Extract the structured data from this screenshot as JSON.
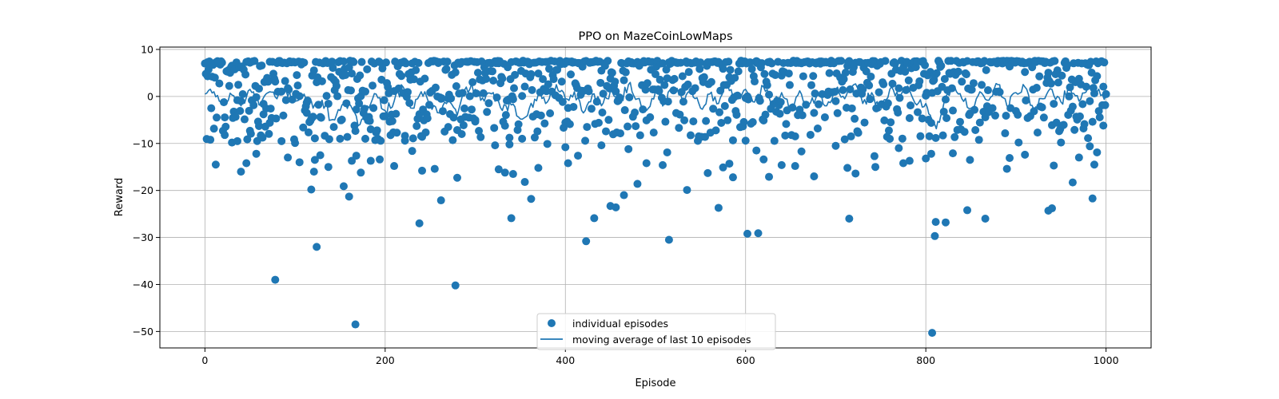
{
  "chart_data": {
    "type": "scatter",
    "title": "PPO on MazeCoinLowMaps",
    "xlabel": "Episode",
    "ylabel": "Reward",
    "xlim": [
      -50,
      1050
    ],
    "ylim": [
      -53.5,
      10.5
    ],
    "x_ticks": [
      0,
      200,
      400,
      600,
      800,
      1000
    ],
    "y_ticks": [
      -50,
      -40,
      -30,
      -20,
      -10,
      0,
      10
    ],
    "x_tick_labels": [
      "0",
      "200",
      "400",
      "600",
      "800",
      "1000"
    ],
    "y_tick_labels": [
      "−50",
      "−40",
      "−30",
      "−20",
      "−10",
      "0",
      "10"
    ],
    "grid": true,
    "legend_position": "lower center",
    "colors": {
      "series": "#1f77b4",
      "grid": "#b0b0b0"
    },
    "series": [
      {
        "name": "individual episodes",
        "kind": "scatter",
        "notes": "About 1000 points over episodes 0-999; most rewards lie between -5 and +7.5 with a dense band near +7.3; selected outliers listed.",
        "points": [
          [
            3,
            7.3
          ],
          [
            8,
            4.2
          ],
          [
            12,
            -14.5
          ],
          [
            22,
            -8.2
          ],
          [
            30,
            -9.8
          ],
          [
            36,
            -9.5
          ],
          [
            40,
            -16.0
          ],
          [
            46,
            -14.2
          ],
          [
            50,
            -7.3
          ],
          [
            57,
            -12.2
          ],
          [
            60,
            -6.3
          ],
          [
            65,
            -3.8
          ],
          [
            72,
            -5.6
          ],
          [
            78,
            -39.0
          ],
          [
            85,
            -9.5
          ],
          [
            92,
            -13.0
          ],
          [
            100,
            -9.9
          ],
          [
            105,
            -14.0
          ],
          [
            113,
            -3.5
          ],
          [
            118,
            -19.8
          ],
          [
            121,
            -16.0
          ],
          [
            122,
            -13.5
          ],
          [
            124,
            -32.0
          ],
          [
            128,
            -12.5
          ],
          [
            137,
            -15.0
          ],
          [
            143,
            -6.5
          ],
          [
            150,
            -9.0
          ],
          [
            154,
            -19.1
          ],
          [
            160,
            -21.3
          ],
          [
            163,
            -13.7
          ],
          [
            167,
            -48.5
          ],
          [
            168,
            -12.6
          ],
          [
            173,
            -16.2
          ],
          [
            178,
            -9.0
          ],
          [
            184,
            -13.7
          ],
          [
            194,
            -13.4
          ],
          [
            210,
            -14.8
          ],
          [
            222,
            -9.4
          ],
          [
            230,
            -11.6
          ],
          [
            238,
            -27.0
          ],
          [
            241,
            -15.8
          ],
          [
            255,
            -15.4
          ],
          [
            262,
            -22.1
          ],
          [
            270,
            -6.5
          ],
          [
            278,
            -40.2
          ],
          [
            280,
            -17.3
          ],
          [
            285,
            -8.0
          ],
          [
            300,
            -5.0
          ],
          [
            322,
            -10.4
          ],
          [
            326,
            -15.5
          ],
          [
            333,
            -16.2
          ],
          [
            338,
            -10.2
          ],
          [
            340,
            -25.9
          ],
          [
            342,
            -16.5
          ],
          [
            352,
            -9.0
          ],
          [
            355,
            -18.2
          ],
          [
            362,
            -21.8
          ],
          [
            370,
            -15.2
          ],
          [
            380,
            -10.1
          ],
          [
            400,
            -10.8
          ],
          [
            403,
            -14.2
          ],
          [
            414,
            -12.6
          ],
          [
            423,
            -30.8
          ],
          [
            432,
            -25.9
          ],
          [
            440,
            -10.4
          ],
          [
            450,
            -23.3
          ],
          [
            456,
            -23.6
          ],
          [
            465,
            -21.0
          ],
          [
            470,
            -11.2
          ],
          [
            480,
            -18.6
          ],
          [
            490,
            -14.2
          ],
          [
            508,
            -14.6
          ],
          [
            513,
            -11.9
          ],
          [
            515,
            -30.5
          ],
          [
            535,
            -19.9
          ],
          [
            558,
            -16.3
          ],
          [
            570,
            -23.7
          ],
          [
            575,
            -15.1
          ],
          [
            582,
            -14.3
          ],
          [
            586,
            -17.2
          ],
          [
            600,
            -9.4
          ],
          [
            602,
            -29.2
          ],
          [
            612,
            -11.5
          ],
          [
            614,
            -29.1
          ],
          [
            620,
            -13.4
          ],
          [
            626,
            -17.1
          ],
          [
            640,
            -14.6
          ],
          [
            655,
            -14.8
          ],
          [
            662,
            -11.7
          ],
          [
            676,
            -17.0
          ],
          [
            700,
            -10.5
          ],
          [
            713,
            -15.2
          ],
          [
            715,
            -26.0
          ],
          [
            722,
            -16.4
          ],
          [
            743,
            -12.7
          ],
          [
            744,
            -15.0
          ],
          [
            770,
            -11.0
          ],
          [
            775,
            -14.2
          ],
          [
            782,
            -13.7
          ],
          [
            800,
            -13.2
          ],
          [
            806,
            -12.2
          ],
          [
            807,
            -50.3
          ],
          [
            810,
            -29.7
          ],
          [
            811,
            -26.7
          ],
          [
            822,
            -26.8
          ],
          [
            830,
            -12.1
          ],
          [
            846,
            -24.2
          ],
          [
            849,
            -13.5
          ],
          [
            866,
            -26.0
          ],
          [
            890,
            -15.4
          ],
          [
            893,
            -13.1
          ],
          [
            903,
            -9.8
          ],
          [
            910,
            -12.4
          ],
          [
            936,
            -24.3
          ],
          [
            940,
            -23.8
          ],
          [
            942,
            -14.7
          ],
          [
            950,
            -9.8
          ],
          [
            963,
            -18.3
          ],
          [
            970,
            -13.0
          ],
          [
            982,
            -10.6
          ],
          [
            985,
            -21.7
          ],
          [
            987,
            -14.5
          ],
          [
            990,
            -11.9
          ],
          [
            997,
            -6.2
          ],
          [
            1000,
            0.5
          ]
        ]
      },
      {
        "name": "moving average of last 10 episodes",
        "kind": "line",
        "points": [
          [
            0,
            0.5
          ],
          [
            10,
            1.0
          ],
          [
            20,
            -1.5
          ],
          [
            30,
            0.3
          ],
          [
            40,
            -2.0
          ],
          [
            50,
            1.5
          ],
          [
            60,
            -1.8
          ],
          [
            70,
            0.8
          ],
          [
            80,
            -0.5
          ],
          [
            90,
            1.2
          ],
          [
            100,
            -1.0
          ],
          [
            110,
            0.5
          ],
          [
            120,
            -2.5
          ],
          [
            130,
            -0.8
          ],
          [
            140,
            -5.0
          ],
          [
            150,
            -3.0
          ],
          [
            160,
            -1.5
          ],
          [
            170,
            -6.2
          ],
          [
            180,
            -2.0
          ],
          [
            190,
            0.5
          ],
          [
            200,
            -3.0
          ],
          [
            210,
            -1.0
          ],
          [
            220,
            2.0
          ],
          [
            230,
            -2.5
          ],
          [
            240,
            1.0
          ],
          [
            250,
            -1.5
          ],
          [
            260,
            -3.5
          ],
          [
            270,
            -0.8
          ],
          [
            280,
            -4.0
          ],
          [
            290,
            2.0
          ],
          [
            300,
            1.5
          ],
          [
            310,
            -1.0
          ],
          [
            320,
            0.8
          ],
          [
            330,
            -3.0
          ],
          [
            340,
            -1.8
          ],
          [
            350,
            -4.8
          ],
          [
            360,
            -2.5
          ],
          [
            370,
            0.5
          ],
          [
            380,
            -1.2
          ],
          [
            390,
            2.5
          ],
          [
            400,
            -0.5
          ],
          [
            410,
            1.0
          ],
          [
            420,
            -3.5
          ],
          [
            430,
            0.5
          ],
          [
            440,
            -2.0
          ],
          [
            450,
            1.2
          ],
          [
            460,
            -1.5
          ],
          [
            470,
            2.5
          ],
          [
            480,
            -0.5
          ],
          [
            490,
            -3.0
          ],
          [
            500,
            1.0
          ],
          [
            510,
            -1.5
          ],
          [
            520,
            2.0
          ],
          [
            530,
            -0.8
          ],
          [
            540,
            1.5
          ],
          [
            550,
            -2.5
          ],
          [
            560,
            0.5
          ],
          [
            570,
            -1.5
          ],
          [
            580,
            2.5
          ],
          [
            590,
            -0.5
          ],
          [
            600,
            1.5
          ],
          [
            610,
            -1.2
          ],
          [
            620,
            2.0
          ],
          [
            630,
            -1.5
          ],
          [
            640,
            0.8
          ],
          [
            650,
            -2.5
          ],
          [
            660,
            1.2
          ],
          [
            670,
            -1.8
          ],
          [
            680,
            0.5
          ],
          [
            690,
            -2.0
          ],
          [
            700,
            1.5
          ],
          [
            710,
            -0.5
          ],
          [
            720,
            2.5
          ],
          [
            730,
            -1.5
          ],
          [
            740,
            0.8
          ],
          [
            750,
            -2.8
          ],
          [
            760,
            1.5
          ],
          [
            770,
            -0.5
          ],
          [
            780,
            2.2
          ],
          [
            790,
            -1.8
          ],
          [
            800,
            -1.5
          ],
          [
            805,
            -4.0
          ],
          [
            810,
            -6.0
          ],
          [
            815,
            -5.5
          ],
          [
            820,
            -1.5
          ],
          [
            830,
            2.0
          ],
          [
            840,
            -0.5
          ],
          [
            850,
            -2.5
          ],
          [
            860,
            1.0
          ],
          [
            870,
            -0.8
          ],
          [
            880,
            2.5
          ],
          [
            890,
            -2.0
          ],
          [
            900,
            0.8
          ],
          [
            910,
            2.0
          ],
          [
            920,
            -3.0
          ],
          [
            930,
            -0.5
          ],
          [
            940,
            1.5
          ],
          [
            950,
            -1.2
          ],
          [
            960,
            2.0
          ],
          [
            970,
            -1.0
          ],
          [
            980,
            2.5
          ],
          [
            990,
            1.0
          ],
          [
            1000,
            0.3
          ]
        ]
      }
    ],
    "legend": {
      "entries": [
        "individual episodes",
        "moving average of last 10 episodes"
      ],
      "position": "lower center"
    }
  }
}
